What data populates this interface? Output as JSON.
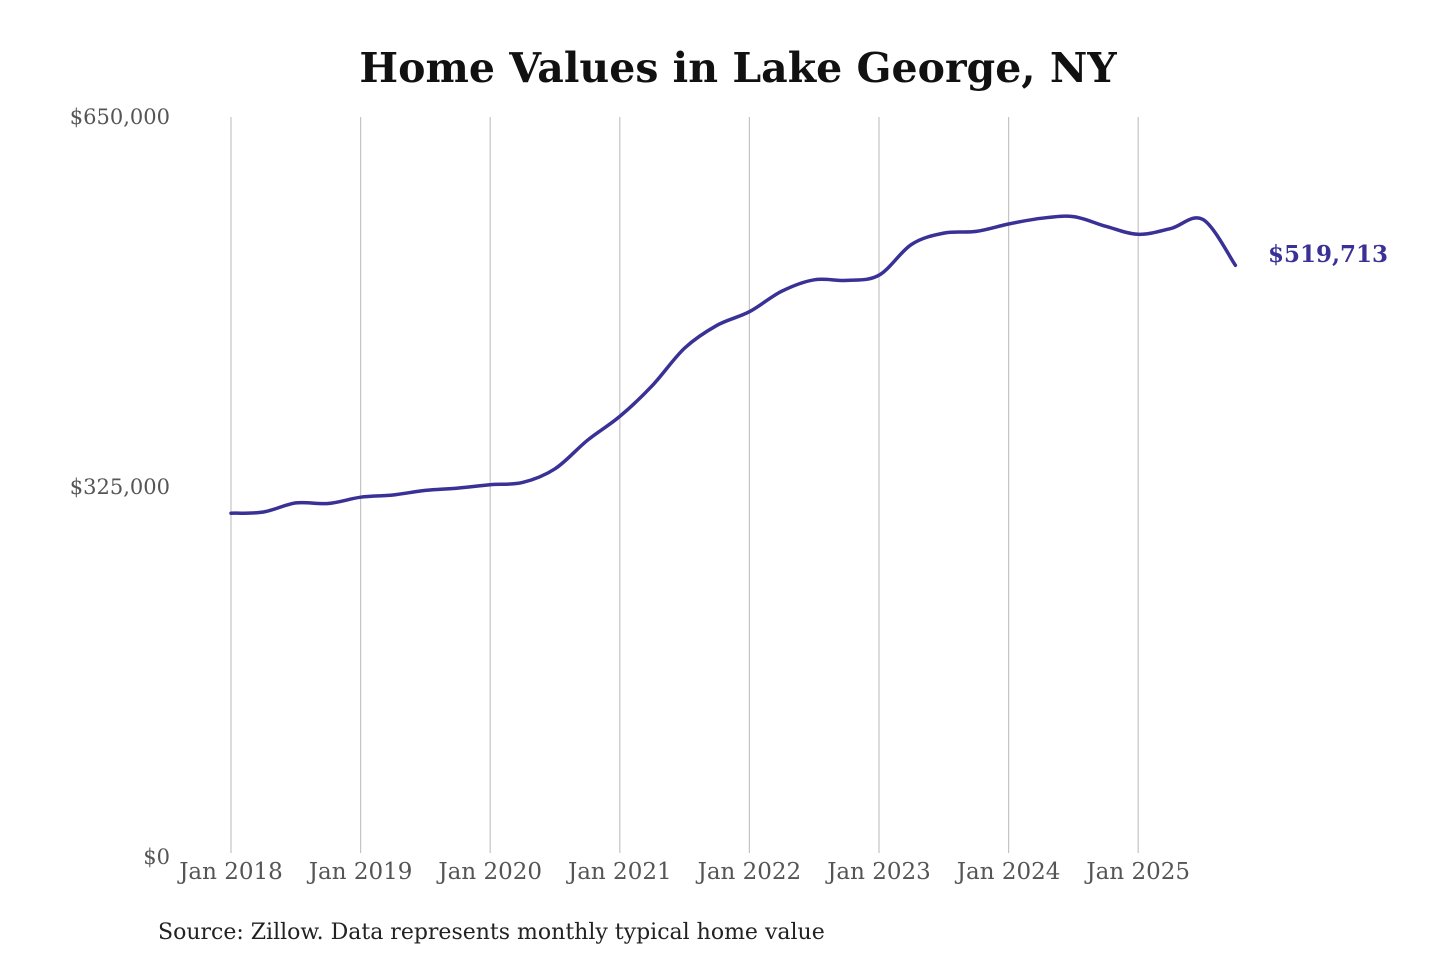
{
  "chart_data": {
    "type": "line",
    "title": "Home Values in Lake George, NY",
    "xlabel": "",
    "ylabel": "",
    "ylim": [
      0,
      650000
    ],
    "y_ticks": [
      {
        "value": 0,
        "label": "$0"
      },
      {
        "value": 325000,
        "label": "$325,000"
      },
      {
        "value": 650000,
        "label": "$650,000"
      }
    ],
    "x_range": [
      "2018-01",
      "2025-10"
    ],
    "x_ticks": [
      {
        "date": "2018-01",
        "label": "Jan 2018"
      },
      {
        "date": "2019-01",
        "label": "Jan 2019"
      },
      {
        "date": "2020-01",
        "label": "Jan 2020"
      },
      {
        "date": "2021-01",
        "label": "Jan 2021"
      },
      {
        "date": "2022-01",
        "label": "Jan 2022"
      },
      {
        "date": "2023-01",
        "label": "Jan 2023"
      },
      {
        "date": "2024-01",
        "label": "Jan 2024"
      },
      {
        "date": "2025-01",
        "label": "Jan 2025"
      }
    ],
    "grid": "vertical",
    "line_color": "#3a3196",
    "series": [
      {
        "x": [
          "2018-01",
          "2018-04",
          "2018-07",
          "2018-10",
          "2019-01",
          "2019-04",
          "2019-07",
          "2019-10",
          "2020-01",
          "2020-04",
          "2020-07",
          "2020-10",
          "2021-01",
          "2021-04",
          "2021-07",
          "2021-10",
          "2022-01",
          "2022-04",
          "2022-07",
          "2022-10",
          "2023-01",
          "2023-04",
          "2023-07",
          "2023-10",
          "2024-01",
          "2024-04",
          "2024-07",
          "2024-10",
          "2025-01",
          "2025-04",
          "2025-07",
          "2025-10"
        ],
        "values": [
          302000,
          303000,
          311000,
          310500,
          316000,
          318000,
          322000,
          324000,
          327000,
          329000,
          341000,
          366000,
          387000,
          414000,
          447000,
          467000,
          479000,
          497000,
          507000,
          506500,
          511000,
          538000,
          548000,
          549500,
          556000,
          561000,
          562500,
          554000,
          547000,
          552000,
          560000,
          519713
        ]
      }
    ],
    "end_label": "$519,713"
  },
  "source_note": "Source: Zillow. Data represents monthly typical home value"
}
